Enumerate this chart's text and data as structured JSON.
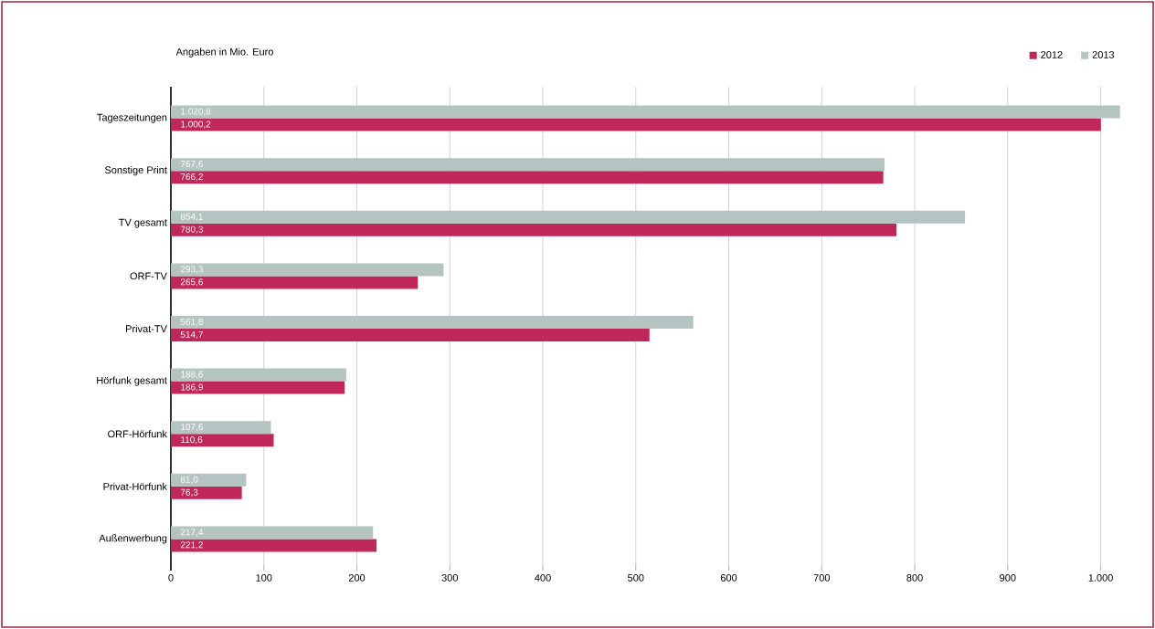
{
  "chart_data": {
    "type": "bar",
    "orientation": "horizontal",
    "categories": [
      "Tageszeitungen",
      "Sonstige Print",
      "TV gesamt",
      "ORF-TV",
      "Privat-TV",
      "Hörfunk gesamt",
      "ORF-Hörfunk",
      "Privat-Hörfunk",
      "Außenwerbung"
    ],
    "series": [
      {
        "name": "2012",
        "color": "#c0285a",
        "values": [
          1000.2,
          766.2,
          780.3,
          265.6,
          514.7,
          186.9,
          110.6,
          76.3,
          221.2
        ],
        "value_labels": [
          "1.000,2",
          "766,2",
          "780,3",
          "265,6",
          "514,7",
          "186,9",
          "110,6",
          "76,3",
          "221,2"
        ]
      },
      {
        "name": "2013",
        "color": "#b4c4c0",
        "values": [
          1020.8,
          767.6,
          854.1,
          293.3,
          561.8,
          188.6,
          107.6,
          81.0,
          217.4
        ],
        "value_labels": [
          "1.020,8",
          "767,6",
          "854,1",
          "293,3",
          "561,8",
          "188,6",
          "107,6",
          "81,0",
          "217,4"
        ]
      }
    ],
    "xlim": [
      0,
      1025
    ],
    "xticks": [
      0,
      100,
      200,
      300,
      400,
      500,
      600,
      700,
      800,
      900,
      {
        "value": 1000,
        "label": "1.000"
      }
    ],
    "grid": "x",
    "legend": "top right",
    "annotations": [
      "Angaben in Mio. Euro"
    ]
  }
}
